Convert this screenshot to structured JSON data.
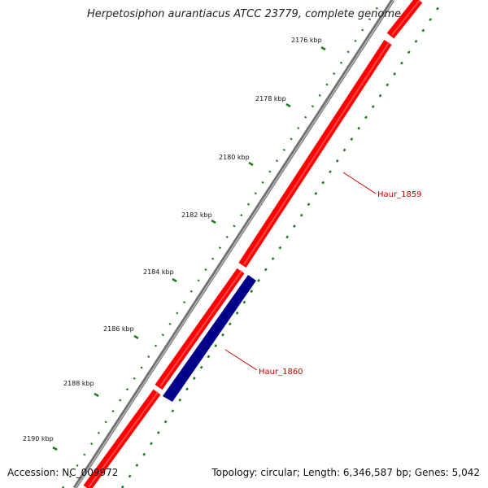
{
  "title": "Herpetosiphon aurantiacus ATCC 23779, complete genome",
  "footer": {
    "accession": "Accession: NC_009972",
    "summary": "Topology: circular; Length: 6,346,587 bp; Genes: 5,042"
  },
  "ticks": [
    {
      "label": "2176 kbp"
    },
    {
      "label": "2178 kbp"
    },
    {
      "label": "2180 kbp"
    },
    {
      "label": "2182 kbp"
    },
    {
      "label": "2184 kbp"
    },
    {
      "label": "2186 kbp"
    },
    {
      "label": "2188 kbp"
    },
    {
      "label": "2190 kbp"
    }
  ],
  "genes": [
    {
      "name": "Haur_1859",
      "strand": "forward"
    },
    {
      "name": "Haur_1860",
      "strand": "reverse"
    }
  ],
  "colors": {
    "backbone": "#8a8a8a",
    "forward_gene": "#ff0000",
    "reverse_gene": "#00008b",
    "gc_skew": "#1e7b1e",
    "gene_label": "#cc0000"
  }
}
